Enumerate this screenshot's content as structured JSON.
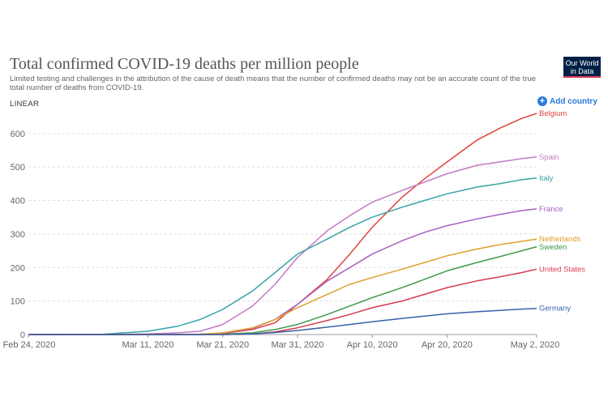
{
  "header": {
    "title": "Total confirmed COVID-19 deaths per million people",
    "subtitle": "Limited testing and challenges in the attribution of the cause of death means that the number of confirmed deaths may not be an accurate count of the true total number of deaths from COVID-19.",
    "logo_line1": "Our World",
    "logo_line2": "in Data"
  },
  "controls": {
    "scale_label": "LINEAR",
    "add_country_label": "Add country",
    "add_icon": "plus-circle-icon"
  },
  "chart_data": {
    "type": "line",
    "title": "Total confirmed COVID-19 deaths per million people",
    "x": [
      0,
      10,
      16,
      20,
      23,
      26,
      30,
      33,
      36,
      40,
      43,
      46,
      50,
      53,
      56,
      60,
      63,
      66,
      68
    ],
    "x_unit": "days",
    "x_ticks": [
      {
        "day": 0,
        "label": "Feb 24, 2020"
      },
      {
        "day": 16,
        "label": "Mar 11, 2020"
      },
      {
        "day": 26,
        "label": "Mar 21, 2020"
      },
      {
        "day": 36,
        "label": "Mar 31, 2020"
      },
      {
        "day": 46,
        "label": "Apr 10, 2020"
      },
      {
        "day": 56,
        "label": "Apr 20, 2020"
      },
      {
        "day": 68,
        "label": "May 2, 2020"
      }
    ],
    "y_ticks": [
      0,
      100,
      200,
      300,
      400,
      500,
      600
    ],
    "ylim": [
      0,
      660
    ],
    "xlim": [
      0,
      68
    ],
    "grid": true,
    "series": [
      {
        "name": "Belgium",
        "color": "#e0443c",
        "values": [
          0,
          0,
          0,
          0,
          0,
          3,
          15,
          35,
          90,
          165,
          240,
          320,
          410,
          465,
          515,
          580,
          615,
          645,
          660
        ]
      },
      {
        "name": "Spain",
        "color": "#c27ac4",
        "values": [
          0,
          0,
          2,
          5,
          10,
          30,
          85,
          150,
          230,
          310,
          355,
          395,
          430,
          455,
          480,
          505,
          515,
          525,
          530
        ]
      },
      {
        "name": "Italy",
        "color": "#3aa3a6",
        "values": [
          0,
          1,
          10,
          25,
          45,
          75,
          130,
          185,
          240,
          285,
          320,
          350,
          380,
          400,
          420,
          440,
          450,
          462,
          467
        ]
      },
      {
        "name": "France",
        "color": "#a761c2",
        "values": [
          0,
          0,
          0,
          0,
          1,
          4,
          18,
          45,
          90,
          160,
          200,
          240,
          280,
          305,
          325,
          345,
          358,
          370,
          375
        ]
      },
      {
        "name": "Netherlands",
        "color": "#e09f2e",
        "values": [
          0,
          0,
          0,
          0,
          1,
          5,
          20,
          45,
          80,
          120,
          150,
          170,
          195,
          215,
          235,
          255,
          268,
          278,
          285
        ]
      },
      {
        "name": "Sweden",
        "color": "#3f9a4a",
        "values": [
          0,
          0,
          0,
          0,
          0,
          1,
          5,
          15,
          30,
          60,
          85,
          110,
          140,
          165,
          190,
          215,
          232,
          250,
          262
        ]
      },
      {
        "name": "United States",
        "color": "#d73c50",
        "values": [
          0,
          0,
          0,
          0,
          0,
          0,
          2,
          8,
          20,
          42,
          60,
          80,
          100,
          120,
          140,
          160,
          172,
          185,
          195
        ]
      },
      {
        "name": "Germany",
        "color": "#3561a8",
        "values": [
          0,
          0,
          0,
          0,
          0,
          0,
          2,
          6,
          12,
          22,
          30,
          38,
          48,
          55,
          62,
          68,
          72,
          76,
          78
        ]
      }
    ]
  }
}
